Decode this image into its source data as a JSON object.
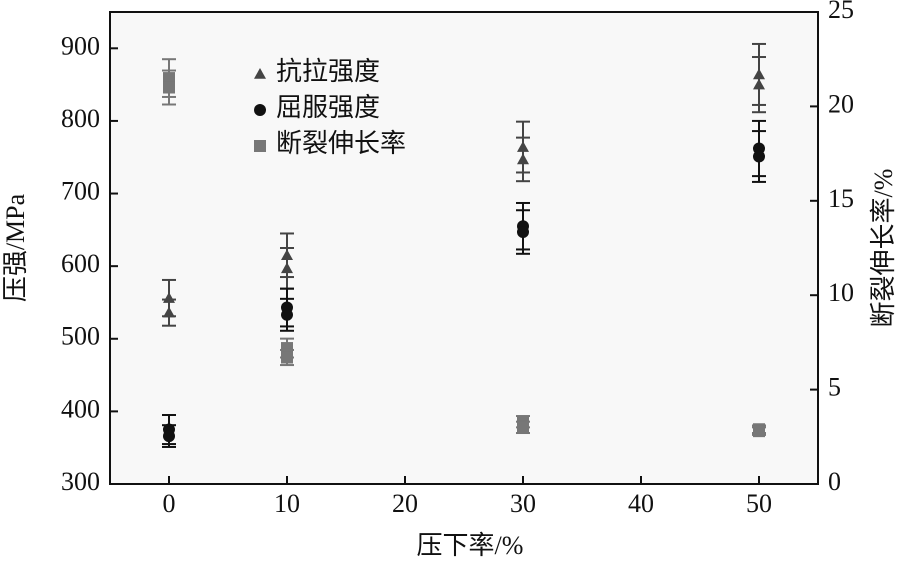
{
  "chart_data": {
    "type": "scatter",
    "xlabel": "压下率/%",
    "ylabel": "压强/MPa",
    "y2label": "断裂伸长率/%",
    "xlim": [
      -5,
      55
    ],
    "xticks": [
      0,
      10,
      20,
      30,
      40,
      50
    ],
    "ylim": [
      300,
      950
    ],
    "yticks": [
      300,
      400,
      500,
      600,
      700,
      800,
      900
    ],
    "y2lim": [
      0,
      25
    ],
    "y2ticks": [
      0,
      5,
      10,
      15,
      20,
      25
    ],
    "legend": "upper left",
    "series": [
      {
        "name": "抗拉强度",
        "marker": "triangle",
        "color": "#444444",
        "axis": "y",
        "x": [
          0,
          0,
          10,
          10,
          30,
          30,
          50,
          50
        ],
        "values": [
          556,
          536,
          615,
          597,
          764,
          747,
          864,
          850
        ],
        "errors": [
          25,
          18,
          30,
          28,
          35,
          30,
          42,
          38
        ]
      },
      {
        "name": "屈服强度",
        "marker": "circle",
        "color": "#111111",
        "axis": "y",
        "x": [
          0,
          0,
          10,
          10,
          30,
          30,
          50,
          50
        ],
        "values": [
          375,
          366,
          543,
          533,
          655,
          647,
          762,
          751
        ],
        "errors": [
          20,
          15,
          26,
          22,
          32,
          30,
          38,
          35
        ]
      },
      {
        "name": "断裂伸长率",
        "marker": "square",
        "color": "#777777",
        "axis": "y2",
        "x": [
          0,
          0,
          10,
          10,
          30,
          30,
          50,
          50
        ],
        "values": [
          21.5,
          21.0,
          7.2,
          6.7,
          3.3,
          3.0,
          2.9,
          2.8
        ],
        "errors": [
          1.0,
          0.9,
          0.5,
          0.4,
          0.3,
          0.3,
          0.2,
          0.2
        ]
      }
    ]
  }
}
